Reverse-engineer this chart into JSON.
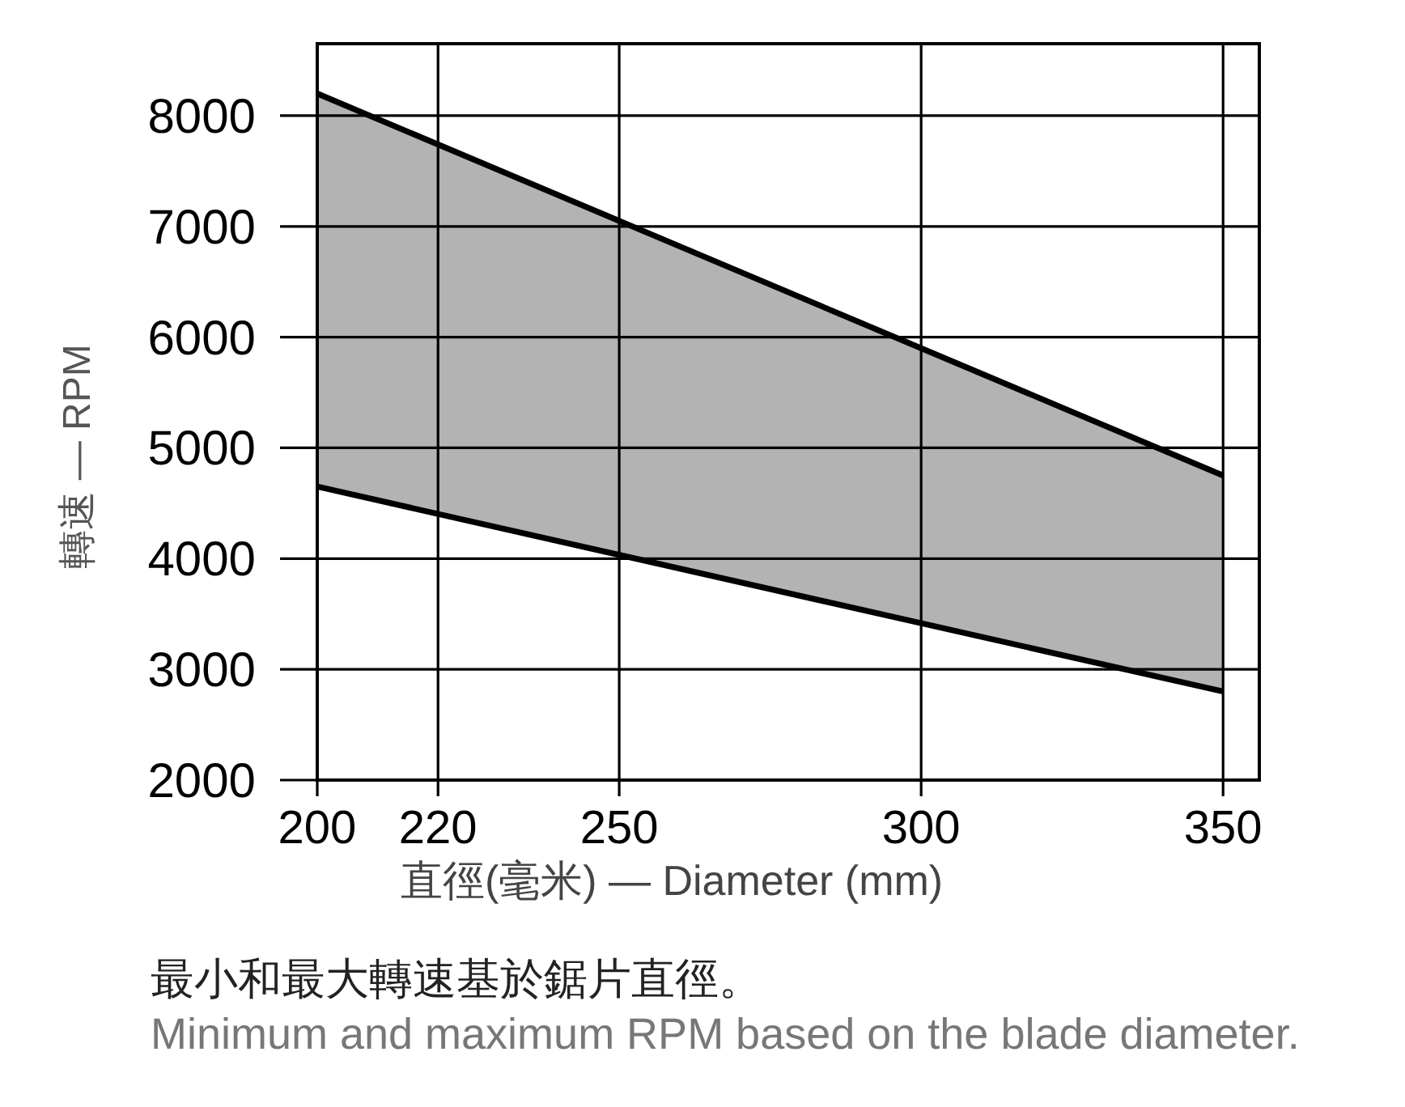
{
  "chart_data": {
    "type": "line",
    "xlabel": "直徑(毫米) — Diameter (mm)",
    "ylabel": "轉速 — RPM",
    "annotations": [
      "最小和最大轉速基於鋸片直徑。",
      "Minimum and maximum RPM based on the blade diameter."
    ],
    "x": [
      200,
      350
    ],
    "series": [
      {
        "color": "#000000",
        "values": [
          8200,
          4750
        ],
        "lower": [
          4650,
          2800
        ],
        "upper": [
          8200,
          4750
        ]
      },
      {
        "color": "#000000",
        "values": [
          4650,
          2800
        ]
      }
    ],
    "xlim": [
      200,
      356
    ],
    "ylim": [
      2000,
      8650
    ],
    "xticks": [
      200,
      220,
      250,
      300,
      350
    ],
    "yticks": [
      2000,
      3000,
      4000,
      5000,
      6000,
      7000,
      8000
    ],
    "grid": true
  }
}
